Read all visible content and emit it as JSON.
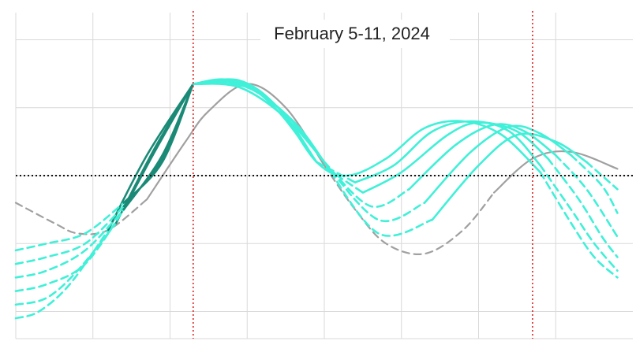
{
  "chart_data": {
    "type": "line",
    "title": "February 5-11, 2024",
    "xlabel": "",
    "ylabel": "",
    "xlim": [
      0,
      8
    ],
    "ylim": [
      -2.4,
      2.4
    ],
    "x_ticks": [
      1,
      2,
      3,
      4,
      5,
      6,
      7
    ],
    "y_ticks": [
      -2,
      -1,
      0,
      1,
      2
    ],
    "grid": true,
    "legend": "none",
    "reference_lines": {
      "horizontal_zero": {
        "y": 0,
        "style": "dotted",
        "color": "#111111"
      },
      "vertical": [
        {
          "x": 2.3,
          "style": "dotted",
          "color": "#e02020"
        },
        {
          "x": 6.7,
          "style": "dotted",
          "color": "#e02020"
        }
      ]
    },
    "colors": {
      "teal": "#40f0d8",
      "dark_teal": "#1a8a76",
      "gray": "#a0a0a0",
      "grid": "#d9d9d9"
    },
    "series": [
      {
        "color": "#a0a0a0",
        "x": [
          0,
          0.5,
          0.8,
          1.2,
          1.7,
          2.2,
          2.5,
          3.0,
          3.5,
          4.0,
          4.4,
          4.8,
          5.3,
          5.8,
          6.2,
          6.7,
          7.2,
          7.8
        ],
        "y": [
          -0.4,
          -0.7,
          -0.85,
          -0.8,
          -0.35,
          0.5,
          0.95,
          1.35,
          1.0,
          0.15,
          -0.5,
          -1.0,
          -1.15,
          -0.8,
          -0.25,
          0.25,
          0.35,
          0.1
        ]
      },
      {
        "color": "#40f0d8",
        "x": [
          0,
          0.3,
          0.7,
          1.2,
          1.7,
          2.3,
          2.9,
          3.4,
          3.9,
          4.3,
          4.8,
          5.3,
          5.8,
          6.3,
          6.8,
          7.2,
          7.5,
          7.8
        ],
        "y": [
          -2.1,
          -2.0,
          -1.6,
          -0.8,
          0.3,
          1.35,
          1.4,
          1.0,
          0.2,
          0.0,
          0.25,
          0.7,
          0.8,
          0.6,
          0.05,
          -0.7,
          -1.2,
          -1.5
        ]
      },
      {
        "color": "#40f0d8",
        "x": [
          0,
          0.4,
          0.8,
          1.3,
          1.8,
          2.3,
          2.8,
          3.4,
          3.9,
          4.4,
          4.9,
          5.4,
          5.9,
          6.4,
          6.8,
          7.2,
          7.5,
          7.8
        ],
        "y": [
          -1.9,
          -1.8,
          -1.4,
          -0.7,
          0.4,
          1.35,
          1.4,
          1.0,
          0.2,
          -0.1,
          0.15,
          0.65,
          0.8,
          0.65,
          0.15,
          -0.5,
          -1.0,
          -1.4
        ]
      },
      {
        "color": "#40f0d8",
        "x": [
          0,
          0.4,
          0.9,
          1.4,
          1.8,
          2.3,
          2.9,
          3.4,
          3.9,
          4.5,
          5.0,
          5.6,
          6.0,
          6.5,
          6.9,
          7.3,
          7.6,
          7.8
        ],
        "y": [
          -1.7,
          -1.6,
          -1.3,
          -0.5,
          0.35,
          1.35,
          1.38,
          0.95,
          0.2,
          -0.25,
          0.05,
          0.6,
          0.78,
          0.65,
          0.25,
          -0.35,
          -0.9,
          -1.2
        ]
      },
      {
        "color": "#40f0d8",
        "x": [
          0,
          0.4,
          0.9,
          1.4,
          1.9,
          2.3,
          2.9,
          3.5,
          4.0,
          4.6,
          5.1,
          5.7,
          6.2,
          6.6,
          7.0,
          7.4,
          7.8
        ],
        "y": [
          -1.5,
          -1.4,
          -1.1,
          -0.5,
          0.3,
          1.35,
          1.35,
          0.9,
          0.2,
          -0.45,
          -0.2,
          0.45,
          0.75,
          0.65,
          0.3,
          -0.2,
          -0.9
        ]
      },
      {
        "color": "#40f0d8",
        "x": [
          0,
          0.4,
          0.9,
          1.4,
          1.9,
          2.3,
          2.9,
          3.5,
          4.0,
          4.7,
          5.3,
          5.9,
          6.4,
          6.8,
          7.2,
          7.6,
          7.8
        ],
        "y": [
          -1.3,
          -1.2,
          -1.0,
          -0.45,
          0.25,
          1.35,
          1.3,
          0.85,
          0.2,
          -0.65,
          -0.4,
          0.35,
          0.72,
          0.62,
          0.3,
          -0.15,
          -0.55
        ]
      },
      {
        "color": "#40f0d8",
        "x": [
          0,
          0.4,
          0.9,
          1.4,
          1.9,
          2.3,
          3.0,
          3.6,
          4.0,
          4.7,
          5.4,
          6.0,
          6.5,
          7.0,
          7.4,
          7.8
        ],
        "y": [
          -1.1,
          -1.0,
          -0.85,
          -0.4,
          0.2,
          1.35,
          1.3,
          0.8,
          0.2,
          -0.85,
          -0.65,
          0.15,
          0.6,
          0.5,
          0.2,
          -0.2
        ]
      }
    ]
  }
}
